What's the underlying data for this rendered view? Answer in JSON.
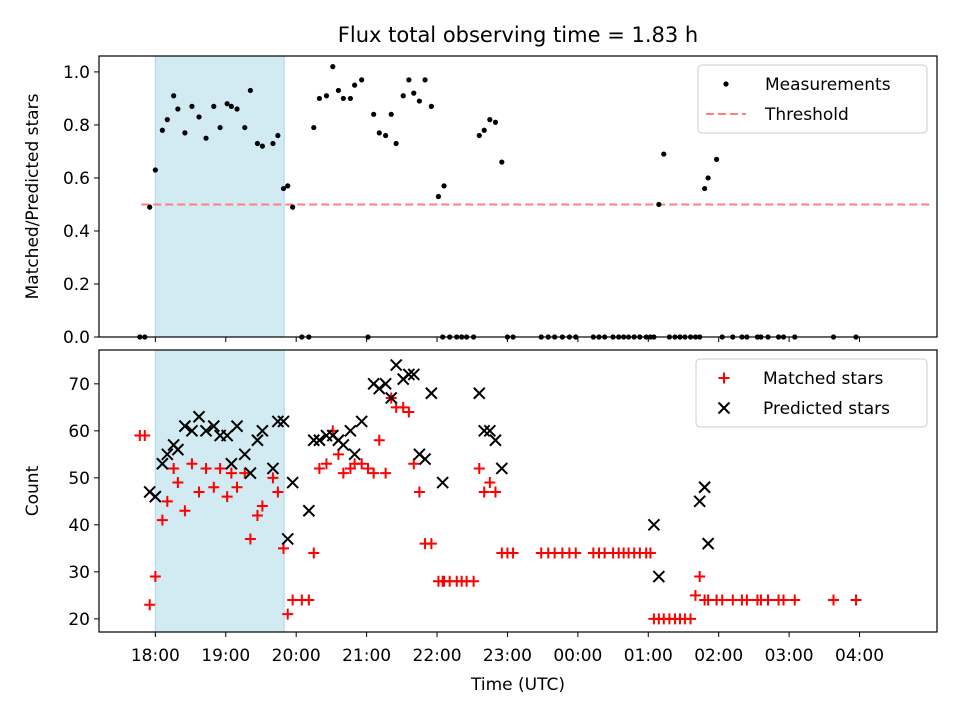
{
  "title": "Flux total observing time = 1.83 h",
  "chart_data": [
    {
      "type": "scatter",
      "name": "ratio-panel",
      "ylabel": "Matched/Predicted stars",
      "ylim": [
        0.0,
        1.06
      ],
      "yticks": [
        0.0,
        0.2,
        0.4,
        0.6,
        0.8,
        1.0
      ],
      "ytick_labels": [
        "0.0",
        "0.2",
        "0.4",
        "0.6",
        "0.8",
        "1.0"
      ],
      "xlim": [
        17.2,
        29.1
      ],
      "shaded_span": [
        18.0,
        19.83
      ],
      "shade_color": "#add8e6",
      "threshold": {
        "value": 0.5,
        "x_range": [
          17.8,
          29.0
        ],
        "color": "#ff7f7f"
      },
      "legend": {
        "position": "top-right",
        "entries": [
          "Measurements",
          "Threshold"
        ]
      },
      "series": [
        {
          "name": "Measurements",
          "marker": "dot",
          "color": "#000000",
          "x": [
            17.78,
            17.85,
            17.92,
            18.0,
            18.1,
            18.17,
            18.26,
            18.32,
            18.42,
            18.52,
            18.62,
            18.72,
            18.83,
            18.92,
            19.02,
            19.08,
            19.16,
            19.27,
            19.35,
            19.45,
            19.52,
            19.67,
            19.74,
            19.82,
            19.88,
            19.95,
            20.08,
            20.18,
            20.25,
            20.33,
            20.43,
            20.52,
            20.6,
            20.67,
            20.77,
            20.83,
            20.93,
            21.02,
            21.1,
            21.18,
            21.27,
            21.35,
            21.42,
            21.52,
            21.6,
            21.67,
            21.75,
            21.83,
            21.92,
            22.02,
            22.08,
            22.1,
            22.18,
            22.28,
            22.35,
            22.42,
            22.52,
            22.6,
            22.67,
            22.75,
            22.83,
            22.92,
            23.0,
            23.08,
            23.48,
            23.58,
            23.67,
            23.78,
            23.88,
            23.97,
            24.22,
            24.3,
            24.38,
            24.5,
            24.58,
            24.65,
            24.72,
            24.8,
            24.88,
            24.97,
            25.03,
            25.08,
            25.15,
            25.22,
            25.3,
            25.38,
            25.45,
            25.52,
            25.6,
            25.67,
            25.73,
            25.8,
            25.85,
            25.97,
            26.05,
            26.2,
            26.33,
            26.4,
            26.55,
            26.6,
            26.7,
            26.85,
            26.92,
            27.08,
            27.63,
            27.95
          ],
          "y": [
            0.0,
            0.0,
            0.49,
            0.63,
            0.78,
            0.82,
            0.91,
            0.86,
            0.77,
            0.87,
            0.83,
            0.75,
            0.87,
            0.79,
            0.88,
            0.87,
            0.86,
            0.79,
            0.93,
            0.73,
            0.72,
            0.73,
            0.76,
            0.56,
            0.57,
            0.49,
            0.0,
            0.0,
            0.79,
            0.9,
            0.91,
            1.02,
            0.93,
            0.9,
            0.9,
            0.95,
            0.97,
            0.0,
            0.84,
            0.77,
            0.76,
            0.84,
            0.73,
            0.91,
            0.97,
            0.92,
            0.89,
            0.97,
            0.87,
            0.53,
            0.0,
            0.57,
            0.0,
            0.0,
            0.0,
            0.0,
            0.0,
            0.76,
            0.78,
            0.82,
            0.81,
            0.66,
            0.0,
            0.0,
            0.0,
            0.0,
            0.0,
            0.0,
            0.0,
            0.0,
            0.0,
            0.0,
            0.0,
            0.0,
            0.0,
            0.0,
            0.0,
            0.0,
            0.0,
            0.0,
            0.0,
            0.0,
            0.5,
            0.69,
            0.0,
            0.0,
            0.0,
            0.0,
            0.0,
            0.0,
            0.0,
            0.56,
            0.6,
            0.67,
            0.0,
            0.0,
            0.0,
            0.0,
            0.0,
            0.0,
            0.0,
            0.0,
            0.0,
            0.0,
            0.0,
            0.0
          ]
        }
      ]
    },
    {
      "type": "scatter",
      "name": "count-panel",
      "ylabel": "Count",
      "xlabel": "Time (UTC)",
      "ylim": [
        17.2,
        77.2
      ],
      "yticks": [
        20,
        30,
        40,
        50,
        60,
        70
      ],
      "ytick_labels": [
        "20",
        "30",
        "40",
        "50",
        "60",
        "70"
      ],
      "xlim": [
        17.2,
        29.1
      ],
      "xticks": [
        18,
        19,
        20,
        21,
        22,
        23,
        24,
        25,
        26,
        27,
        28
      ],
      "xtick_labels": [
        "18:00",
        "19:00",
        "20:00",
        "21:00",
        "22:00",
        "23:00",
        "00:00",
        "01:00",
        "02:00",
        "03:00",
        "04:00"
      ],
      "shaded_span": [
        18.0,
        19.83
      ],
      "shade_color": "#add8e6",
      "legend": {
        "position": "top-right",
        "entries": [
          "Matched stars",
          "Predicted stars"
        ]
      },
      "series": [
        {
          "name": "Matched stars",
          "marker": "plus",
          "color": "#ff0000",
          "x": [
            17.78,
            17.85,
            17.92,
            18.0,
            18.1,
            18.17,
            18.26,
            18.32,
            18.42,
            18.52,
            18.62,
            18.72,
            18.83,
            18.92,
            19.02,
            19.08,
            19.16,
            19.27,
            19.35,
            19.45,
            19.52,
            19.67,
            19.74,
            19.82,
            19.88,
            19.95,
            20.08,
            20.18,
            20.25,
            20.33,
            20.43,
            20.52,
            20.6,
            20.67,
            20.77,
            20.83,
            20.93,
            21.02,
            21.1,
            21.18,
            21.27,
            21.35,
            21.42,
            21.52,
            21.6,
            21.67,
            21.75,
            21.83,
            21.92,
            22.02,
            22.08,
            22.1,
            22.18,
            22.28,
            22.35,
            22.42,
            22.52,
            22.6,
            22.67,
            22.75,
            22.83,
            22.92,
            23.0,
            23.08,
            23.48,
            23.58,
            23.67,
            23.78,
            23.88,
            23.97,
            24.22,
            24.3,
            24.38,
            24.5,
            24.58,
            24.65,
            24.72,
            24.8,
            24.88,
            24.97,
            25.03,
            25.08,
            25.15,
            25.22,
            25.3,
            25.38,
            25.45,
            25.52,
            25.6,
            25.67,
            25.73,
            25.8,
            25.85,
            25.97,
            26.05,
            26.2,
            26.33,
            26.4,
            26.55,
            26.6,
            26.7,
            26.85,
            26.92,
            27.08,
            27.63,
            27.95
          ],
          "y": [
            59,
            59,
            23,
            29,
            41,
            45,
            52,
            49,
            43,
            53,
            47,
            52,
            48,
            52,
            46,
            51,
            48,
            51,
            37,
            42,
            44,
            50,
            47,
            35,
            21,
            24,
            24,
            24,
            34,
            52,
            53,
            60,
            55,
            51,
            52,
            53,
            53,
            52,
            51,
            58,
            51,
            67,
            65,
            65,
            64,
            53,
            47,
            36,
            36,
            28,
            28,
            28,
            28,
            28,
            28,
            28,
            28,
            52,
            47,
            49,
            47,
            34,
            34,
            34,
            34,
            34,
            34,
            34,
            34,
            34,
            34,
            34,
            34,
            34,
            34,
            34,
            34,
            34,
            34,
            34,
            34,
            20,
            20,
            20,
            20,
            20,
            20,
            20,
            20,
            25,
            29,
            24,
            24,
            24,
            24,
            24,
            24,
            24,
            24,
            24,
            24,
            24,
            24,
            24,
            24,
            24
          ]
        },
        {
          "name": "Predicted stars",
          "marker": "x",
          "color": "#000000",
          "x": [
            17.92,
            18.0,
            18.1,
            18.17,
            18.26,
            18.32,
            18.42,
            18.52,
            18.62,
            18.72,
            18.83,
            18.92,
            19.02,
            19.08,
            19.16,
            19.27,
            19.35,
            19.45,
            19.52,
            19.67,
            19.74,
            19.82,
            19.88,
            19.95,
            20.18,
            20.25,
            20.33,
            20.43,
            20.52,
            20.6,
            20.67,
            20.77,
            20.83,
            20.93,
            21.1,
            21.18,
            21.27,
            21.35,
            21.42,
            21.52,
            21.6,
            21.67,
            21.75,
            21.83,
            21.92,
            22.08,
            22.6,
            22.67,
            22.75,
            22.83,
            22.92,
            25.08,
            25.15,
            25.73,
            25.8,
            25.85
          ],
          "y": [
            47,
            46,
            53,
            55,
            57,
            56,
            61,
            60,
            63,
            60,
            61,
            59,
            59,
            53,
            61,
            55,
            51,
            58,
            60,
            52,
            62,
            62,
            37,
            49,
            43,
            58,
            58,
            59,
            59,
            58,
            57,
            60,
            55,
            62,
            70,
            69,
            70,
            67,
            74,
            71,
            72,
            72,
            55,
            54,
            68,
            49,
            68,
            60,
            60,
            58,
            52,
            40,
            29,
            45,
            48,
            36
          ]
        }
      ]
    }
  ]
}
